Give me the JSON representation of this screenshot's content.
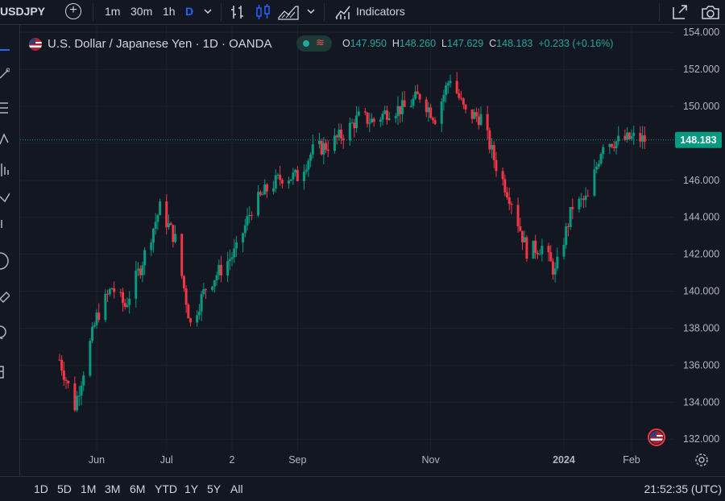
{
  "toolbar": {
    "symbol": "USDJPY",
    "intervals": [
      "1m",
      "30m",
      "1h",
      "D"
    ],
    "active_interval": "D",
    "indicators_label": "Indicators"
  },
  "legend": {
    "title": "U.S. Dollar / Japanese Yen · 1D · OANDA",
    "open_label": "O",
    "open": "147.950",
    "high_label": "H",
    "high": "148.260",
    "low_label": "L",
    "low": "147.629",
    "close_label": "C",
    "close": "148.183",
    "change": "+0.233 (+0.16%)"
  },
  "bottom": {
    "ranges": [
      "1D",
      "5D",
      "1M",
      "3M",
      "6M",
      "YTD",
      "1Y",
      "5Y",
      "All"
    ],
    "clock": "21:52:35 (UTC)"
  },
  "colors": {
    "up": "#089981",
    "down": "#f23645",
    "background": "#131722",
    "grid": "#1e222d"
  },
  "chart_data": {
    "type": "candlestick",
    "title": "U.S. Dollar / Japanese Yen · 1D · OANDA",
    "last_price_label": "148.183",
    "last_price": 148.183,
    "ylim": [
      131.4,
      154.4
    ],
    "y_ticks": [
      "154.000",
      "152.000",
      "150.000",
      "148.000",
      "146.000",
      "144.000",
      "142.000",
      "140.000",
      "138.000",
      "136.000",
      "134.000",
      "132.000"
    ],
    "x_ticks": [
      {
        "label": "Jun",
        "date": "2023-06-01"
      },
      {
        "label": "Jul",
        "date": "2023-07-03"
      },
      {
        "label": "2",
        "date": "2023-08-02"
      },
      {
        "label": "Sep",
        "date": "2023-09-01"
      },
      {
        "label": "Nov",
        "date": "2023-11-01"
      },
      {
        "label": "2024",
        "date": "2024-01-01",
        "bold": true
      },
      {
        "label": "Feb",
        "date": "2024-02-01"
      }
    ],
    "grid": true,
    "approx_close_path": [
      {
        "date": "2023-05-15",
        "close": 136.3
      },
      {
        "date": "2023-05-22",
        "close": 133.8
      },
      {
        "date": "2023-06-01",
        "close": 138.6
      },
      {
        "date": "2023-06-08",
        "close": 140.2
      },
      {
        "date": "2023-06-14",
        "close": 139.2
      },
      {
        "date": "2023-06-21",
        "close": 141.3
      },
      {
        "date": "2023-06-30",
        "close": 144.5
      },
      {
        "date": "2023-07-07",
        "close": 142.8
      },
      {
        "date": "2023-07-14",
        "close": 138.2
      },
      {
        "date": "2023-07-21",
        "close": 140.2
      },
      {
        "date": "2023-07-28",
        "close": 141.2
      },
      {
        "date": "2023-08-04",
        "close": 142.2
      },
      {
        "date": "2023-08-11",
        "close": 144.5
      },
      {
        "date": "2023-08-18",
        "close": 145.5
      },
      {
        "date": "2023-08-25",
        "close": 146.2
      },
      {
        "date": "2023-09-01",
        "close": 146.2
      },
      {
        "date": "2023-09-08",
        "close": 147.6
      },
      {
        "date": "2023-09-15",
        "close": 147.9
      },
      {
        "date": "2023-09-22",
        "close": 148.5
      },
      {
        "date": "2023-09-29",
        "close": 149.4
      },
      {
        "date": "2023-10-06",
        "close": 149.2
      },
      {
        "date": "2023-10-13",
        "close": 149.8
      },
      {
        "date": "2023-10-20",
        "close": 149.9
      },
      {
        "date": "2023-10-27",
        "close": 150.6
      },
      {
        "date": "2023-11-03",
        "close": 149.4
      },
      {
        "date": "2023-11-10",
        "close": 151.6
      },
      {
        "date": "2023-11-17",
        "close": 149.6
      },
      {
        "date": "2023-11-24",
        "close": 149.4
      },
      {
        "date": "2023-12-01",
        "close": 146.8
      },
      {
        "date": "2023-12-08",
        "close": 144.9
      },
      {
        "date": "2023-12-15",
        "close": 142.2
      },
      {
        "date": "2023-12-22",
        "close": 142.4
      },
      {
        "date": "2023-12-28",
        "close": 141.0
      },
      {
        "date": "2024-01-05",
        "close": 144.6
      },
      {
        "date": "2024-01-12",
        "close": 145.0
      },
      {
        "date": "2024-01-19",
        "close": 148.1
      },
      {
        "date": "2024-01-26",
        "close": 148.1
      },
      {
        "date": "2024-02-02",
        "close": 148.3
      },
      {
        "date": "2024-02-07",
        "close": 148.18
      }
    ]
  }
}
